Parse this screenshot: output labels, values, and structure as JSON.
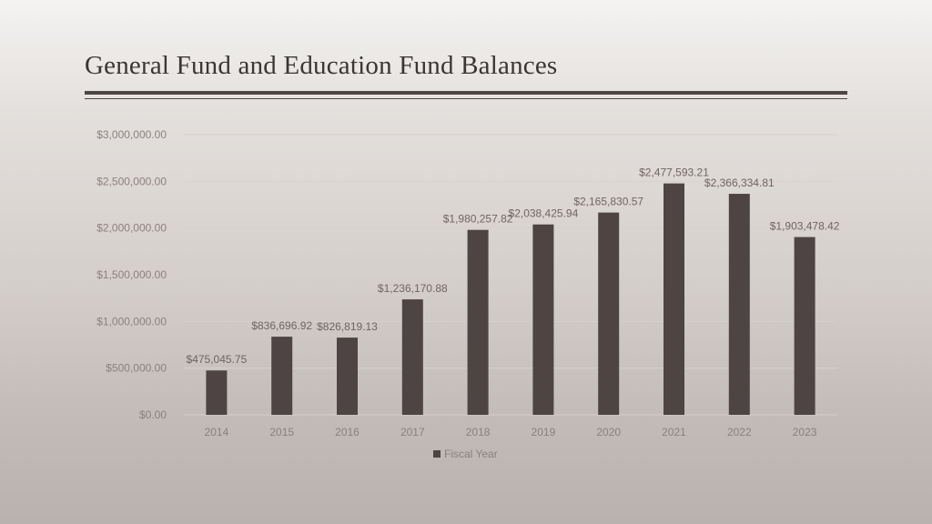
{
  "slide": {
    "title": "General Fund and Education Fund Balances"
  },
  "chart_data": {
    "type": "bar",
    "title": "",
    "xlabel": "",
    "ylabel": "",
    "categories": [
      "2014",
      "2015",
      "2016",
      "2017",
      "2018",
      "2019",
      "2020",
      "2021",
      "2022",
      "2023"
    ],
    "series": [
      {
        "name": "Fiscal Year",
        "color": "#4d4443",
        "values": [
          475045.75,
          836696.92,
          826819.13,
          1236170.88,
          1980257.82,
          2038425.94,
          2165830.57,
          2477593.21,
          2366334.81,
          1903478.42
        ],
        "labels": [
          "$475,045.75",
          "$836,696.92",
          "$826,819.13",
          "$1,236,170.88",
          "$1,980,257.82",
          "$2,038,425.94",
          "$2,165,830.57",
          "$2,477,593.21",
          "$2,366,334.81",
          "$1,903,478.42"
        ]
      }
    ],
    "ylim": [
      0,
      3000000
    ],
    "y_ticks": [
      0,
      500000,
      1000000,
      1500000,
      2000000,
      2500000,
      3000000
    ],
    "y_tick_labels": [
      "$0.00",
      "$500,000.00",
      "$1,000,000.00",
      "$1,500,000.00",
      "$2,000,000.00",
      "$2,500,000.00",
      "$3,000,000.00"
    ],
    "grid": true,
    "legend_position": "bottom",
    "colors": {
      "bar": "#4d4443",
      "grid": "#d6d1ce",
      "axis_text": "#8a8180",
      "label_text": "#6e6563"
    }
  }
}
